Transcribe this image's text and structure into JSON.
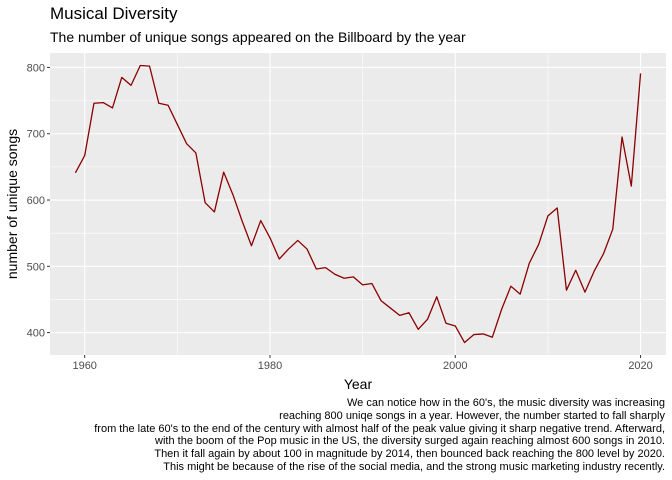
{
  "chart_data": {
    "type": "line",
    "title": "Musical Diversity",
    "subtitle": "The number of unique songs appeared on the Billboard by the year",
    "xlabel": "Year",
    "ylabel": "number of unique songs",
    "xlim": [
      1959,
      2020
    ],
    "ylim": [
      385,
      803
    ],
    "x_ticks": [
      1960,
      1980,
      2000,
      2020
    ],
    "y_ticks": [
      400,
      500,
      600,
      700,
      800
    ],
    "grid": true,
    "series": [
      {
        "color": "#8B0000",
        "x": [
          1959,
          1960,
          1961,
          1962,
          1963,
          1964,
          1965,
          1966,
          1967,
          1968,
          1969,
          1970,
          1971,
          1972,
          1973,
          1974,
          1975,
          1976,
          1977,
          1978,
          1979,
          1980,
          1981,
          1982,
          1983,
          1984,
          1985,
          1986,
          1987,
          1988,
          1989,
          1990,
          1991,
          1992,
          1993,
          1994,
          1995,
          1996,
          1997,
          1998,
          1999,
          2000,
          2001,
          2002,
          2003,
          2004,
          2005,
          2006,
          2007,
          2008,
          2009,
          2010,
          2011,
          2012,
          2013,
          2014,
          2015,
          2016,
          2017,
          2018,
          2019,
          2020
        ],
        "y": [
          641,
          667,
          746,
          747,
          739,
          785,
          773,
          803,
          802,
          746,
          743,
          714,
          685,
          671,
          596,
          582,
          642,
          608,
          568,
          531,
          569,
          543,
          511,
          526,
          539,
          526,
          496,
          498,
          488,
          482,
          484,
          472,
          474,
          448,
          437,
          426,
          430,
          405,
          420,
          454,
          414,
          410,
          385,
          397,
          398,
          393,
          435,
          470,
          458,
          505,
          533,
          576,
          588,
          464,
          494,
          461,
          493,
          519,
          556,
          695,
          621,
          791
        ]
      }
    ],
    "caption": [
      "We can notice how in the 60's, the music diversity was increasing",
      "reaching 800 uniqe songs in a year. However, the number started to fall sharply",
      "from the late 60's to the end of the century with almost half of the peak value giving it sharp negative trend. Afterward,",
      "with the boom of the Pop music in the US, the diversity surged again reaching almost 600 songs in 2010.",
      "Then it fall again by about 100 in magnitude by 2014, then bounced back reaching the 800 level by 2020.",
      "This might be because of the rise of the social media, and the strong music marketing industry recently."
    ]
  }
}
